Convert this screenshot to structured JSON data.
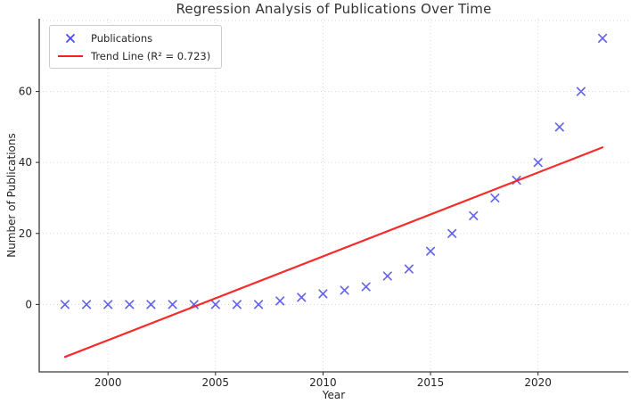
{
  "figure": {
    "title": "Regression Analysis of Publications Over Time",
    "xlabel": "Year",
    "ylabel": "Number of Publications"
  },
  "chart_data": {
    "type": "scatter",
    "title": "Regression Analysis of Publications Over Time",
    "xlabel": "Year",
    "ylabel": "Number of Publications",
    "categories": [
      1998,
      1999,
      2000,
      2001,
      2002,
      2003,
      2004,
      2005,
      2006,
      2007,
      2008,
      2009,
      2010,
      2011,
      2012,
      2013,
      2014,
      2015,
      2016,
      2017,
      2018,
      2019,
      2020,
      2021,
      2022,
      2023
    ],
    "series": [
      {
        "name": "Publications",
        "type": "scatter",
        "marker": "x",
        "x": [
          1998,
          1999,
          2000,
          2001,
          2002,
          2003,
          2004,
          2005,
          2006,
          2007,
          2008,
          2009,
          2010,
          2011,
          2012,
          2013,
          2014,
          2015,
          2016,
          2017,
          2018,
          2019,
          2020,
          2021,
          2022,
          2023
        ],
        "y": [
          0,
          0,
          0,
          0,
          0,
          0,
          0,
          0,
          0,
          0,
          1,
          2,
          3,
          4,
          5,
          8,
          10,
          15,
          20,
          25,
          30,
          35,
          40,
          50,
          60,
          75
        ]
      },
      {
        "name": "Trend Line (R² = 0.723)",
        "type": "line",
        "r_squared": 0.723,
        "x": [
          1998,
          2023
        ],
        "y": [
          -14.78,
          44.25
        ]
      }
    ],
    "xlim": [
      1996.8,
      2024.2
    ],
    "ylim": [
      -19,
      80.5
    ],
    "xticks": [
      2000,
      2005,
      2010,
      2015,
      2020
    ],
    "yticks": [
      0,
      20,
      40,
      60
    ],
    "grid_extra_y": [
      80
    ],
    "grid": "dotted",
    "legend_position": "upper left"
  },
  "legend": {
    "items": [
      {
        "label": "Publications"
      },
      {
        "label": "Trend Line (R² = 0.723)"
      }
    ]
  },
  "colors": {
    "marker": "#4b4be8",
    "trend": "#f62020",
    "grid": "#d2d2d2",
    "spine": "#3a3a3a",
    "tick": "#262626",
    "text": "#262626",
    "title": "#333333"
  }
}
